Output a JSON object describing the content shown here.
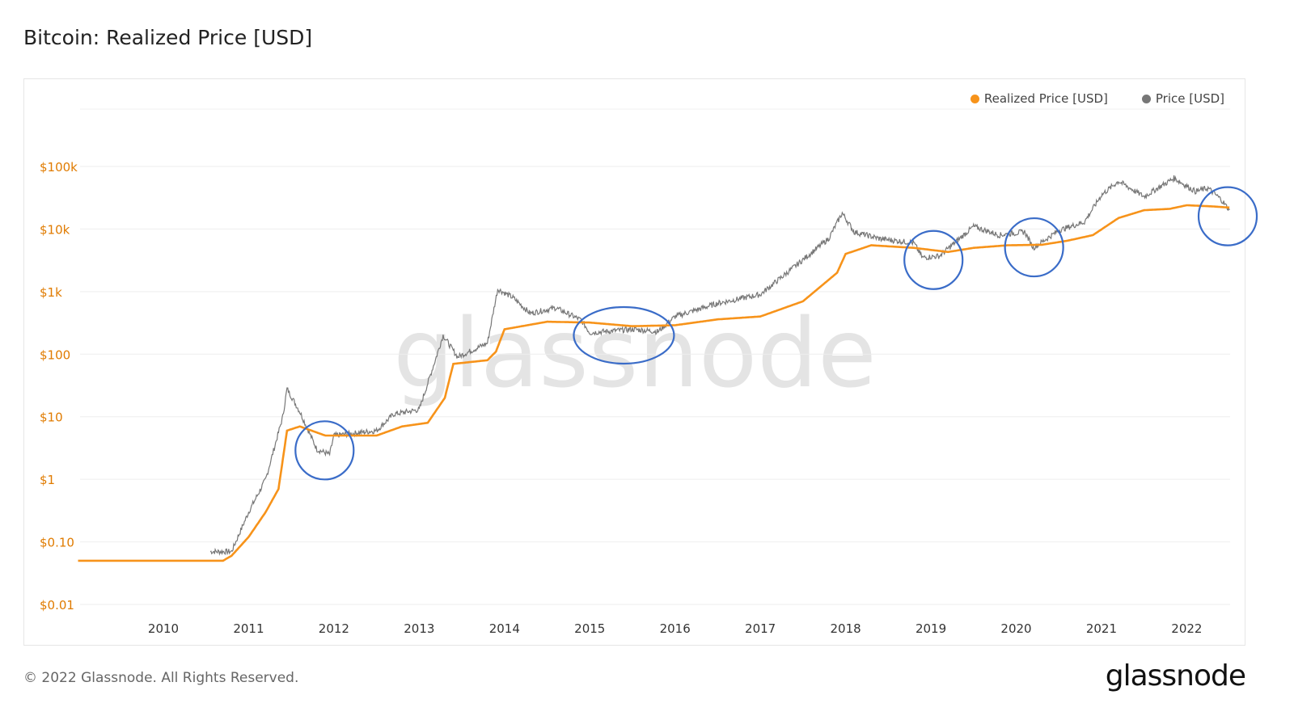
{
  "header": {
    "title": "Bitcoin: Realized Price [USD]"
  },
  "footer": {
    "copyright": "© 2022 Glassnode. All Rights Reserved.",
    "brand": "glassnode"
  },
  "colors": {
    "realized": "#f7931a",
    "price": "#777777",
    "annotation": "#3a6cc8",
    "ytick": "#e07b00"
  },
  "chart_data": {
    "type": "line",
    "title": "Bitcoin: Realized Price [USD]",
    "watermark": "glassnode",
    "xlabel": "",
    "ylabel": "",
    "xlim": [
      2009.0,
      2022.5
    ],
    "ylim": [
      0.01,
      100000
    ],
    "yscale": "log",
    "grid": true,
    "legend_position": "top-right",
    "xticks": [
      2010,
      2011,
      2012,
      2013,
      2014,
      2015,
      2016,
      2017,
      2018,
      2019,
      2020,
      2021,
      2022
    ],
    "xtick_labels": [
      "2010",
      "2011",
      "2012",
      "2013",
      "2014",
      "2015",
      "2016",
      "2017",
      "2018",
      "2019",
      "2020",
      "2021",
      "2022"
    ],
    "yticks": [
      0.01,
      0.1,
      1,
      10,
      100,
      1000,
      10000,
      100000
    ],
    "ytick_labels": [
      "$0.01",
      "$0.10",
      "$1",
      "$10",
      "$100",
      "$1k",
      "$10k",
      "$100k"
    ],
    "series": [
      {
        "name": "Realized Price [USD]",
        "color": "#f7931a",
        "points": [
          [
            2009.0,
            0.05
          ],
          [
            2010.7,
            0.05
          ],
          [
            2010.8,
            0.06
          ],
          [
            2011.0,
            0.12
          ],
          [
            2011.2,
            0.3
          ],
          [
            2011.35,
            0.7
          ],
          [
            2011.45,
            6
          ],
          [
            2011.6,
            7
          ],
          [
            2011.9,
            5
          ],
          [
            2012.5,
            5
          ],
          [
            2012.8,
            7
          ],
          [
            2013.1,
            8
          ],
          [
            2013.3,
            20
          ],
          [
            2013.4,
            70
          ],
          [
            2013.8,
            80
          ],
          [
            2013.9,
            110
          ],
          [
            2014.0,
            250
          ],
          [
            2014.5,
            330
          ],
          [
            2015.0,
            320
          ],
          [
            2015.5,
            280
          ],
          [
            2016.0,
            290
          ],
          [
            2016.5,
            360
          ],
          [
            2017.0,
            400
          ],
          [
            2017.5,
            700
          ],
          [
            2017.9,
            2000
          ],
          [
            2018.0,
            4000
          ],
          [
            2018.3,
            5500
          ],
          [
            2018.8,
            5000
          ],
          [
            2019.2,
            4300
          ],
          [
            2019.5,
            5000
          ],
          [
            2019.9,
            5500
          ],
          [
            2020.3,
            5600
          ],
          [
            2020.6,
            6500
          ],
          [
            2020.9,
            8000
          ],
          [
            2021.2,
            15000
          ],
          [
            2021.5,
            20000
          ],
          [
            2021.8,
            21000
          ],
          [
            2022.0,
            24000
          ],
          [
            2022.3,
            23000
          ],
          [
            2022.5,
            22000
          ]
        ]
      },
      {
        "name": "Price [USD]",
        "color": "#777777",
        "points": [
          [
            2010.55,
            0.07
          ],
          [
            2010.8,
            0.07
          ],
          [
            2011.0,
            0.3
          ],
          [
            2011.2,
            1
          ],
          [
            2011.4,
            10
          ],
          [
            2011.45,
            28
          ],
          [
            2011.6,
            12
          ],
          [
            2011.8,
            3
          ],
          [
            2011.95,
            2.5
          ],
          [
            2012.0,
            5
          ],
          [
            2012.5,
            6
          ],
          [
            2012.7,
            11
          ],
          [
            2013.0,
            13
          ],
          [
            2013.2,
            90
          ],
          [
            2013.28,
            200
          ],
          [
            2013.45,
            90
          ],
          [
            2013.8,
            150
          ],
          [
            2013.92,
            1100
          ],
          [
            2014.1,
            800
          ],
          [
            2014.3,
            450
          ],
          [
            2014.6,
            550
          ],
          [
            2014.9,
            350
          ],
          [
            2015.0,
            220
          ],
          [
            2015.5,
            250
          ],
          [
            2015.8,
            230
          ],
          [
            2016.0,
            400
          ],
          [
            2016.5,
            650
          ],
          [
            2017.0,
            900
          ],
          [
            2017.4,
            2500
          ],
          [
            2017.8,
            7000
          ],
          [
            2017.96,
            18000
          ],
          [
            2018.1,
            9000
          ],
          [
            2018.4,
            7000
          ],
          [
            2018.8,
            6000
          ],
          [
            2018.9,
            3500
          ],
          [
            2019.1,
            3700
          ],
          [
            2019.5,
            11000
          ],
          [
            2019.8,
            8000
          ],
          [
            2020.1,
            9000
          ],
          [
            2020.2,
            5000
          ],
          [
            2020.5,
            9500
          ],
          [
            2020.8,
            13000
          ],
          [
            2021.0,
            35000
          ],
          [
            2021.2,
            58000
          ],
          [
            2021.5,
            33000
          ],
          [
            2021.85,
            65000
          ],
          [
            2022.1,
            40000
          ],
          [
            2022.25,
            45000
          ],
          [
            2022.4,
            30000
          ],
          [
            2022.5,
            20000
          ]
        ]
      }
    ],
    "annotations": [
      {
        "type": "circle",
        "x": 2011.89,
        "y": 2.9
      },
      {
        "type": "ellipse",
        "x": 2015.4,
        "y": 200
      },
      {
        "type": "circle",
        "x": 2019.03,
        "y": 3200
      },
      {
        "type": "circle",
        "x": 2020.21,
        "y": 5100
      },
      {
        "type": "circle",
        "x": 2022.48,
        "y": 16000
      }
    ]
  }
}
